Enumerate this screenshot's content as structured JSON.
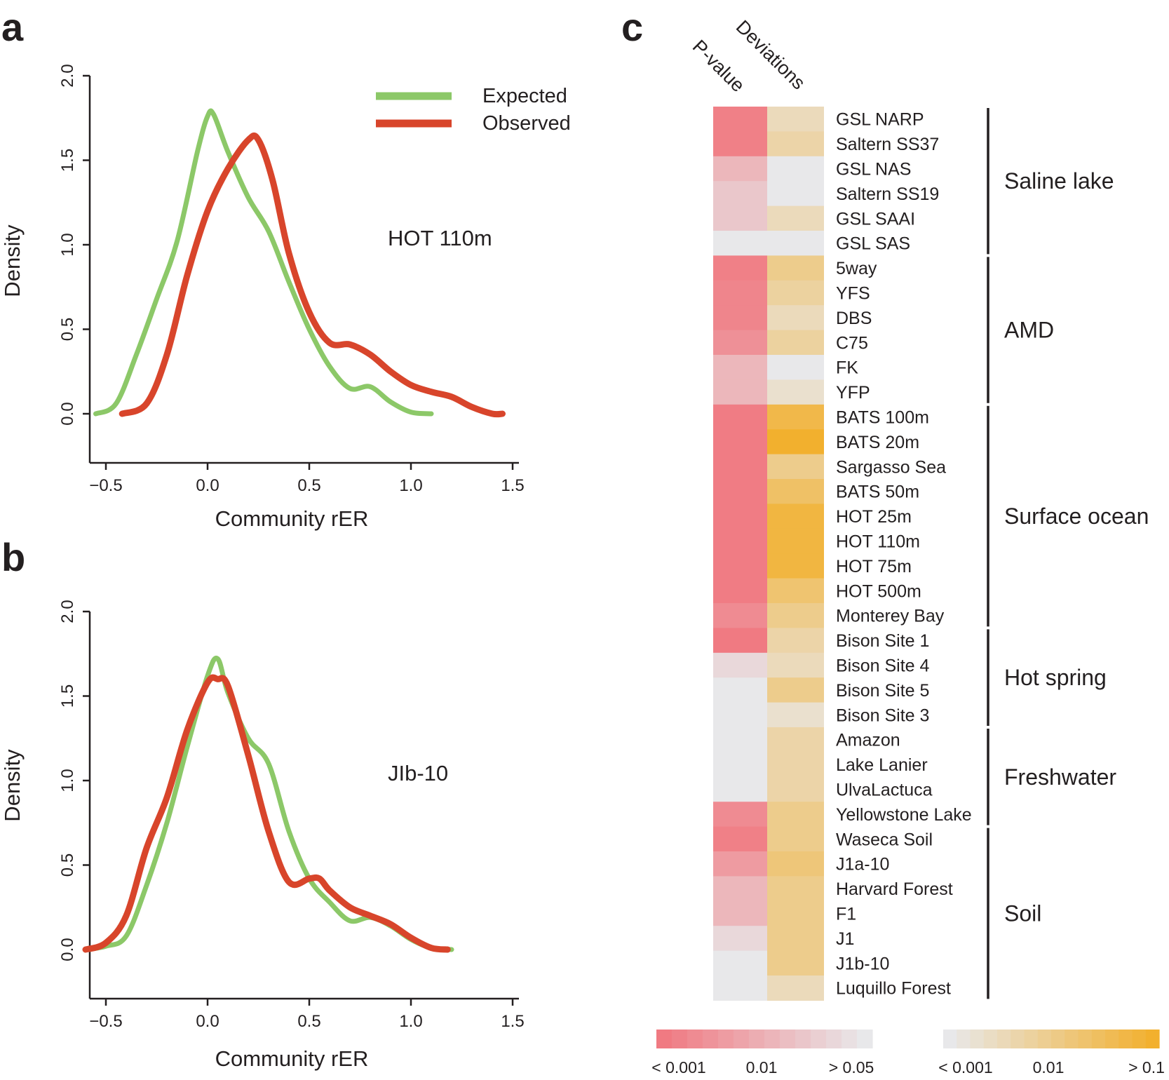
{
  "colors": {
    "expected": "#8cc868",
    "observed": "#d8452b",
    "axis": "#231f20",
    "pvalue_min": "#f07a82",
    "pvalue_max": "#e8e8ea",
    "deviation_min": "#e8e8ea",
    "deviation_max": "#f2b02e"
  },
  "chart_data": [
    {
      "panel": "a",
      "type": "line",
      "title": "HOT 110m",
      "xlabel": "Community rER",
      "ylabel": "Density",
      "xlim": [
        -0.6,
        1.5
      ],
      "ylim": [
        -0.3,
        2.0
      ],
      "xticks": [
        -0.5,
        0.0,
        0.5,
        1.0,
        1.5
      ],
      "xtick_labels": [
        "−0.5",
        "0.0",
        "0.5",
        "1.0",
        "1.5"
      ],
      "yticks": [
        0.0,
        0.5,
        1.0,
        1.5,
        2.0
      ],
      "ytick_labels": [
        "0.0",
        "0.5",
        "1.0",
        "1.5",
        "2.0"
      ],
      "legend": [
        "Expected",
        "Observed"
      ],
      "legend_position": "top-right",
      "series": [
        {
          "name": "Expected",
          "color_key": "expected",
          "x": [
            -0.55,
            -0.45,
            -0.35,
            -0.25,
            -0.15,
            -0.05,
            0.0,
            0.03,
            0.1,
            0.2,
            0.3,
            0.4,
            0.5,
            0.6,
            0.7,
            0.8,
            0.9,
            1.0,
            1.1
          ],
          "y": [
            0.0,
            0.06,
            0.35,
            0.68,
            1.02,
            1.55,
            1.76,
            1.77,
            1.55,
            1.28,
            1.08,
            0.78,
            0.5,
            0.28,
            0.15,
            0.16,
            0.07,
            0.01,
            0.0
          ]
        },
        {
          "name": "Observed",
          "color_key": "observed",
          "x": [
            -0.42,
            -0.3,
            -0.2,
            -0.1,
            0.0,
            0.1,
            0.2,
            0.25,
            0.32,
            0.4,
            0.5,
            0.6,
            0.7,
            0.8,
            0.9,
            1.0,
            1.1,
            1.2,
            1.3,
            1.4,
            1.45
          ],
          "y": [
            0.0,
            0.06,
            0.35,
            0.82,
            1.2,
            1.45,
            1.62,
            1.62,
            1.38,
            0.95,
            0.6,
            0.42,
            0.41,
            0.35,
            0.25,
            0.17,
            0.13,
            0.1,
            0.04,
            0.0,
            0.0
          ]
        }
      ]
    },
    {
      "panel": "b",
      "type": "line",
      "title": "JIb-10",
      "xlabel": "Community rER",
      "ylabel": "Density",
      "xlim": [
        -0.6,
        1.5
      ],
      "ylim": [
        -0.3,
        2.0
      ],
      "xticks": [
        -0.5,
        0.0,
        0.5,
        1.0,
        1.5
      ],
      "xtick_labels": [
        "−0.5",
        "0.0",
        "0.5",
        "1.0",
        "1.5"
      ],
      "yticks": [
        0.0,
        0.5,
        1.0,
        1.5,
        2.0
      ],
      "ytick_labels": [
        "0.0",
        "0.5",
        "1.0",
        "1.5",
        "2.0"
      ],
      "series": [
        {
          "name": "Expected",
          "color_key": "expected",
          "x": [
            -0.6,
            -0.5,
            -0.4,
            -0.3,
            -0.2,
            -0.1,
            0.0,
            0.05,
            0.1,
            0.2,
            0.3,
            0.4,
            0.5,
            0.6,
            0.7,
            0.8,
            0.9,
            1.0,
            1.1,
            1.2
          ],
          "y": [
            0.0,
            0.02,
            0.08,
            0.38,
            0.75,
            1.2,
            1.62,
            1.72,
            1.52,
            1.25,
            1.1,
            0.7,
            0.42,
            0.28,
            0.17,
            0.19,
            0.14,
            0.06,
            0.01,
            0.0
          ]
        },
        {
          "name": "Observed",
          "color_key": "observed",
          "x": [
            -0.6,
            -0.5,
            -0.4,
            -0.3,
            -0.2,
            -0.1,
            0.0,
            0.05,
            0.1,
            0.2,
            0.3,
            0.4,
            0.5,
            0.55,
            0.6,
            0.7,
            0.8,
            0.9,
            1.0,
            1.1,
            1.18
          ],
          "y": [
            0.0,
            0.04,
            0.2,
            0.6,
            0.9,
            1.3,
            1.58,
            1.6,
            1.56,
            1.15,
            0.7,
            0.4,
            0.42,
            0.42,
            0.35,
            0.25,
            0.2,
            0.15,
            0.07,
            0.01,
            0.0
          ]
        }
      ]
    },
    {
      "panel": "c",
      "type": "heatmap",
      "columns": [
        "P-value",
        "Deviations"
      ],
      "pvalue_level_desc": "0 = < 0.001 (dark pink) to 1 = > 0.05 (grey)",
      "deviation_level_desc": "0 = < 0.001 (grey) to 1 = > 0.1 (orange)",
      "rows": [
        {
          "label": "GSL NARP",
          "pvalue": 0.05,
          "deviation": 0.25
        },
        {
          "label": "Saltern SS37",
          "pvalue": 0.05,
          "deviation": 0.35
        },
        {
          "label": "GSL NAS",
          "pvalue": 0.55,
          "deviation": 0.0
        },
        {
          "label": "Saltern SS19",
          "pvalue": 0.7,
          "deviation": 0.0
        },
        {
          "label": "GSL SAAI",
          "pvalue": 0.7,
          "deviation": 0.25
        },
        {
          "label": "GSL SAS",
          "pvalue": 1.0,
          "deviation": 0.0
        },
        {
          "label": "5way",
          "pvalue": 0.05,
          "deviation": 0.5
        },
        {
          "label": "YFS",
          "pvalue": 0.1,
          "deviation": 0.4
        },
        {
          "label": "DBS",
          "pvalue": 0.1,
          "deviation": 0.25
        },
        {
          "label": "C75",
          "pvalue": 0.2,
          "deviation": 0.4
        },
        {
          "label": "FK",
          "pvalue": 0.55,
          "deviation": 0.0
        },
        {
          "label": "YFP",
          "pvalue": 0.55,
          "deviation": 0.15
        },
        {
          "label": "BATS 100m",
          "pvalue": 0.02,
          "deviation": 0.85
        },
        {
          "label": "BATS 20m",
          "pvalue": 0.02,
          "deviation": 1.0
        },
        {
          "label": "Sargasso Sea",
          "pvalue": 0.02,
          "deviation": 0.5
        },
        {
          "label": "BATS 50m",
          "pvalue": 0.02,
          "deviation": 0.7
        },
        {
          "label": "HOT 25m",
          "pvalue": 0.02,
          "deviation": 0.9
        },
        {
          "label": "HOT 110m",
          "pvalue": 0.02,
          "deviation": 0.9
        },
        {
          "label": "HOT 75m",
          "pvalue": 0.02,
          "deviation": 0.9
        },
        {
          "label": "HOT 500m",
          "pvalue": 0.02,
          "deviation": 0.65
        },
        {
          "label": "Monterey Bay",
          "pvalue": 0.15,
          "deviation": 0.5
        },
        {
          "label": "Bison Site 1",
          "pvalue": 0.0,
          "deviation": 0.35
        },
        {
          "label": "Bison Site 4",
          "pvalue": 0.85,
          "deviation": 0.25
        },
        {
          "label": "Bison Site 5",
          "pvalue": 1.0,
          "deviation": 0.5
        },
        {
          "label": "Bison Site 3",
          "pvalue": 1.0,
          "deviation": 0.15
        },
        {
          "label": "Amazon",
          "pvalue": 1.0,
          "deviation": 0.35
        },
        {
          "label": "Lake Lanier",
          "pvalue": 1.0,
          "deviation": 0.35
        },
        {
          "label": "UlvaLactuca",
          "pvalue": 1.0,
          "deviation": 0.35
        },
        {
          "label": "Yellowstone Lake",
          "pvalue": 0.15,
          "deviation": 0.5
        },
        {
          "label": "Waseca Soil",
          "pvalue": 0.05,
          "deviation": 0.5
        },
        {
          "label": "J1a-10",
          "pvalue": 0.3,
          "deviation": 0.6
        },
        {
          "label": "Harvard Forest",
          "pvalue": 0.55,
          "deviation": 0.5
        },
        {
          "label": "F1",
          "pvalue": 0.55,
          "deviation": 0.5
        },
        {
          "label": "J1",
          "pvalue": 0.85,
          "deviation": 0.5
        },
        {
          "label": "J1b-10",
          "pvalue": 1.0,
          "deviation": 0.5
        },
        {
          "label": "Luquillo Forest",
          "pvalue": 1.0,
          "deviation": 0.25
        }
      ],
      "groups": [
        {
          "label": "Saline lake",
          "start": 0,
          "end": 5
        },
        {
          "label": "AMD",
          "start": 6,
          "end": 11
        },
        {
          "label": "Surface ocean",
          "start": 12,
          "end": 20
        },
        {
          "label": "Hot spring",
          "start": 21,
          "end": 24
        },
        {
          "label": "Freshwater",
          "start": 25,
          "end": 28
        },
        {
          "label": "Soil",
          "start": 29,
          "end": 35
        }
      ],
      "colorbars": [
        {
          "name": "pvalue",
          "labels": [
            "< 0.001",
            "0.01",
            "> 0.05"
          ]
        },
        {
          "name": "deviation",
          "labels": [
            "< 0.001",
            "0.01",
            "> 0.1"
          ]
        }
      ]
    }
  ]
}
